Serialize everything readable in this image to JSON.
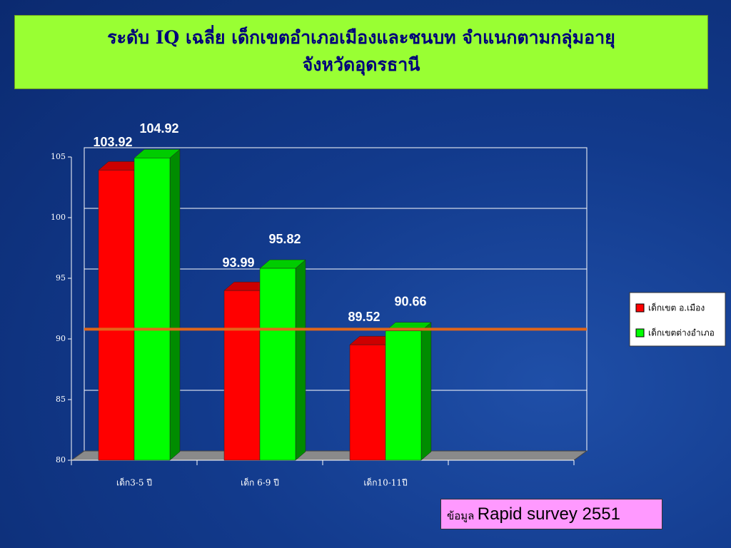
{
  "header": {
    "title": [
      "ระดับ IQ เฉลี่ย เด็กเขตอำเภอเมืองและชนบท  จำแนกตามกลุ่มอายุ",
      "จังหวัดอุดรธานี"
    ]
  },
  "chart_data": {
    "type": "bar3d",
    "categories": [
      "เด็ก3-5 ปี",
      "เด็ก 6-9 ปี",
      "เด็ก10-11ปี",
      null
    ],
    "series": [
      {
        "name": "เด็กเขต อ.เมือง",
        "color": "#ff0000",
        "values": [
          103.92,
          93.99,
          89.52,
          null
        ]
      },
      {
        "name": "เด็กเขตต่างอำเภอ",
        "color": "#00ff00",
        "values": [
          104.92,
          95.82,
          90.66,
          null
        ]
      }
    ],
    "ylim": [
      80,
      105
    ],
    "yticks": [
      80,
      85,
      90,
      95,
      100,
      105
    ],
    "grid": true,
    "reference_line": {
      "value": 90.8,
      "color": "#e0661a"
    },
    "legend": "right"
  },
  "source": {
    "label": "ข้อมูล",
    "text": "Rapid survey 2551"
  }
}
